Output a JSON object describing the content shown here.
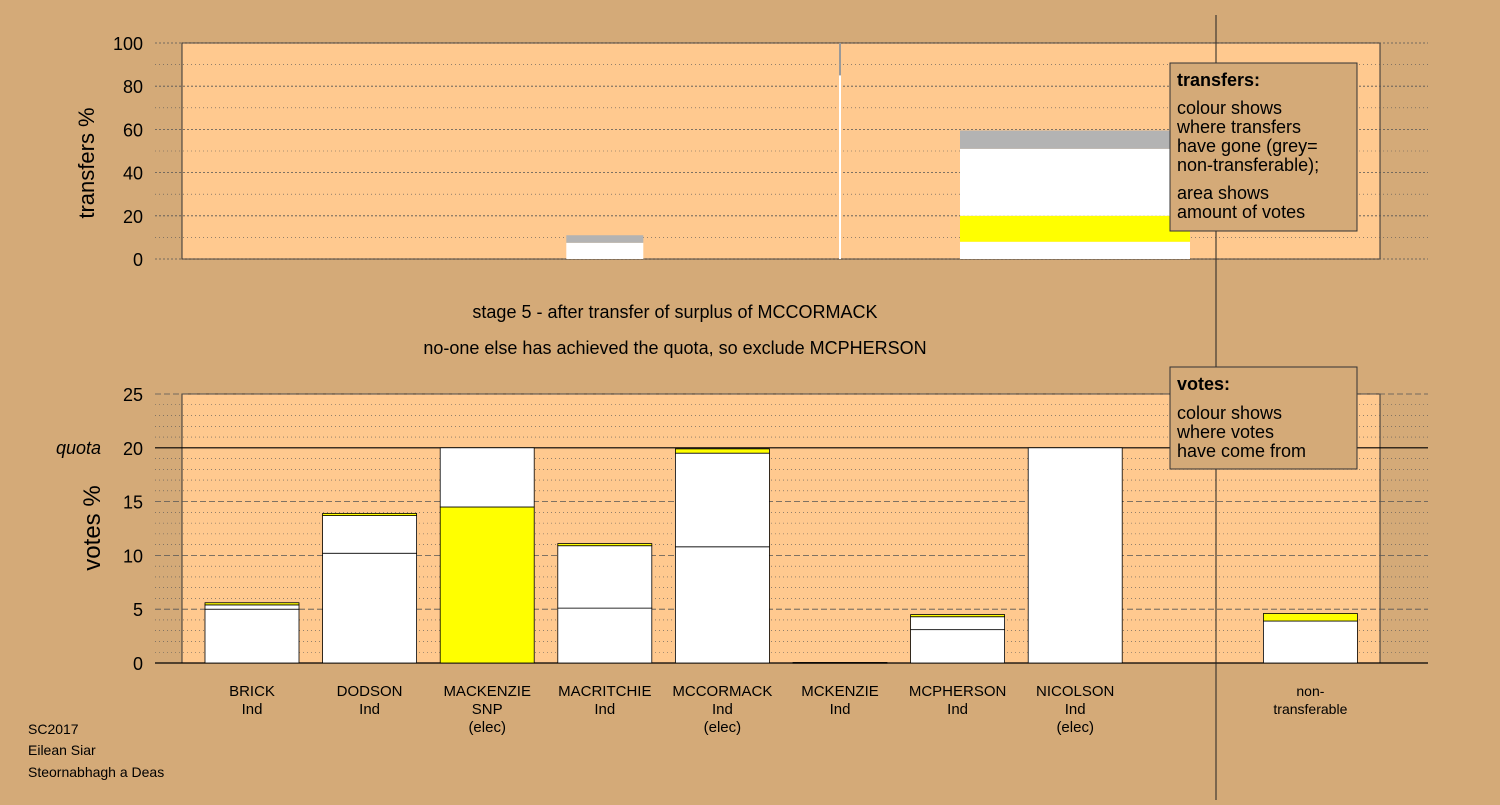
{
  "colors": {
    "background": "#d4aa78",
    "plot_fill": "#ffc98f",
    "white": "#ffffff",
    "yellow": "#ffff00",
    "grey": "#b3b3b3",
    "line": "#000000",
    "legend_fill": "#d4aa78"
  },
  "stage_title": "stage 5 - after transfer of surplus of MCCORMACK",
  "stage_subtitle": "no-one else has achieved the quota, so exclude MCPHERSON",
  "footer": [
    "SC2017",
    "Eilean Siar",
    "Steornabhagh a Deas"
  ],
  "legend_transfers": {
    "title": "transfers:",
    "lines": [
      "colour shows",
      "where transfers",
      "have gone (grey=",
      "non-transferable);",
      "area shows",
      "amount of votes"
    ]
  },
  "legend_votes": {
    "title": "votes:",
    "lines": [
      "colour shows",
      "where votes",
      "have come from"
    ]
  },
  "chart_data": [
    {
      "type": "bar",
      "subtype": "stacked",
      "ylabel": "transfers %",
      "ylim": [
        0,
        100
      ],
      "yticks": [
        0,
        20,
        40,
        60,
        80,
        100
      ],
      "bars": [
        {
          "category": "MACRITCHIE",
          "segments": [
            {
              "value": 7.5,
              "color": "white"
            },
            {
              "value": 3.5,
              "color": "grey"
            }
          ]
        },
        {
          "category": "MCCORMACK",
          "segments": [
            {
              "value": 8,
              "color": "white"
            },
            {
              "value": 12,
              "color": "yellow"
            },
            {
              "value": 31,
              "color": "white"
            },
            {
              "value": 8.5,
              "color": "grey"
            }
          ]
        }
      ],
      "marker_value": 100
    },
    {
      "type": "bar",
      "subtype": "stacked",
      "ylabel": "votes %",
      "ylim": [
        0,
        25
      ],
      "yticks": [
        0,
        5,
        10,
        15,
        20,
        25
      ],
      "quota": {
        "label": "quota",
        "value": 20
      },
      "categories": [
        {
          "name": "BRICK",
          "party": "Ind",
          "elected": ""
        },
        {
          "name": "DODSON",
          "party": "Ind",
          "elected": ""
        },
        {
          "name": "MACKENZIE",
          "party": "SNP",
          "elected": "(elec)"
        },
        {
          "name": "MACRITCHIE",
          "party": "Ind",
          "elected": ""
        },
        {
          "name": "MCCORMACK",
          "party": "Ind",
          "elected": "(elec)"
        },
        {
          "name": "MCKENZIE",
          "party": "Ind",
          "elected": ""
        },
        {
          "name": "MCPHERSON",
          "party": "Ind",
          "elected": ""
        },
        {
          "name": "NICOLSON",
          "party": "Ind",
          "elected": "(elec)"
        },
        {
          "name": "",
          "party": "",
          "elected": ""
        },
        {
          "name": "non-",
          "party": "transferable",
          "elected": ""
        }
      ],
      "bars": [
        [
          {
            "value": 5.0,
            "color": "white"
          },
          {
            "value": 0.4,
            "color": "white"
          },
          {
            "value": 0.2,
            "color": "yellow"
          }
        ],
        [
          {
            "value": 10.2,
            "color": "white"
          },
          {
            "value": 3.5,
            "color": "white"
          },
          {
            "value": 0.2,
            "color": "yellow"
          }
        ],
        [
          {
            "value": 14.5,
            "color": "yellow"
          },
          {
            "value": 5.5,
            "color": "white"
          }
        ],
        [
          {
            "value": 5.1,
            "color": "white"
          },
          {
            "value": 5.8,
            "color": "white"
          },
          {
            "value": 0.2,
            "color": "yellow"
          }
        ],
        [
          {
            "value": 10.8,
            "color": "white"
          },
          {
            "value": 8.7,
            "color": "white"
          },
          {
            "value": 0.4,
            "color": "yellow"
          }
        ],
        [
          {
            "value": 0.05,
            "color": "white"
          }
        ],
        [
          {
            "value": 3.1,
            "color": "white"
          },
          {
            "value": 1.2,
            "color": "white"
          },
          {
            "value": 0.2,
            "color": "yellow"
          }
        ],
        [
          {
            "value": 20.0,
            "color": "white"
          }
        ],
        [],
        [
          {
            "value": 3.9,
            "color": "white"
          },
          {
            "value": 0.7,
            "color": "yellow"
          }
        ]
      ]
    }
  ]
}
